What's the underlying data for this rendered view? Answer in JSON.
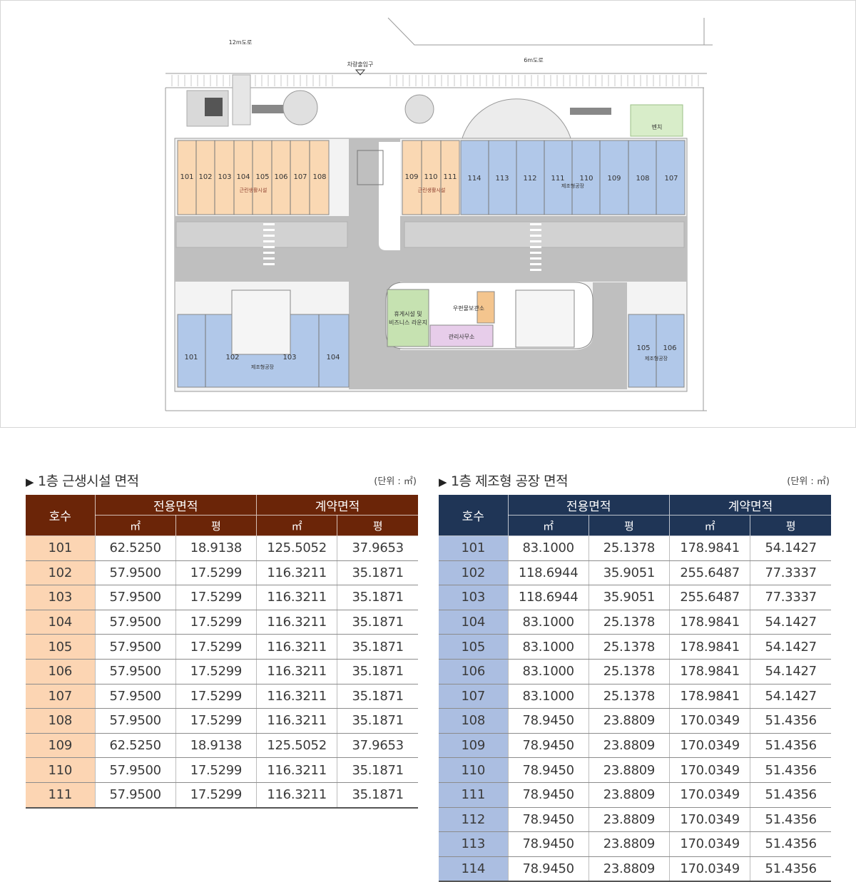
{
  "floor_plan": {
    "road_12m": "12m도로",
    "road_6m": "6m도로",
    "vehicle_entrance": "차량출입구",
    "bench": "벤치",
    "lounge_line1": "휴게시설 및",
    "lounge_line2": "비즈니스 라운지",
    "mail_storage": "우편물보관소",
    "management_office": "관리사무소",
    "zone_retail": "근린생활시설",
    "zone_factory": "제조형공장",
    "top_left_units": [
      "101",
      "102",
      "103",
      "104",
      "105",
      "106",
      "107",
      "108"
    ],
    "top_mid_units": [
      "109",
      "110",
      "111"
    ],
    "top_right_units": [
      "114",
      "113",
      "112",
      "111",
      "110",
      "109",
      "108",
      "107"
    ],
    "bottom_left_units": [
      "101",
      "102",
      "103",
      "104"
    ],
    "bottom_right_units": [
      "105",
      "106"
    ],
    "colors": {
      "retail": "#fad8b3",
      "factory": "#b1c8e9",
      "lounge": "#c6e2b1",
      "office": "#e7cdea",
      "road": "#bfbfbf"
    }
  },
  "retail_table": {
    "title": "1층 근생시설 면적",
    "unit": "(단위 : ㎡)",
    "header_unit_no": "호수",
    "header_exclusive": "전용면적",
    "header_contract": "계약면적",
    "sub_m2": "㎡",
    "sub_pyeong": "평",
    "rows": [
      [
        "101",
        "62.5250",
        "18.9138",
        "125.5052",
        "37.9653"
      ],
      [
        "102",
        "57.9500",
        "17.5299",
        "116.3211",
        "35.1871"
      ],
      [
        "103",
        "57.9500",
        "17.5299",
        "116.3211",
        "35.1871"
      ],
      [
        "104",
        "57.9500",
        "17.5299",
        "116.3211",
        "35.1871"
      ],
      [
        "105",
        "57.9500",
        "17.5299",
        "116.3211",
        "35.1871"
      ],
      [
        "106",
        "57.9500",
        "17.5299",
        "116.3211",
        "35.1871"
      ],
      [
        "107",
        "57.9500",
        "17.5299",
        "116.3211",
        "35.1871"
      ],
      [
        "108",
        "57.9500",
        "17.5299",
        "116.3211",
        "35.1871"
      ],
      [
        "109",
        "62.5250",
        "18.9138",
        "125.5052",
        "37.9653"
      ],
      [
        "110",
        "57.9500",
        "17.5299",
        "116.3211",
        "35.1871"
      ],
      [
        "111",
        "57.9500",
        "17.5299",
        "116.3211",
        "35.1871"
      ]
    ]
  },
  "factory_table": {
    "title": "1층 제조형 공장 면적",
    "unit": "(단위 : ㎡)",
    "header_unit_no": "호수",
    "header_exclusive": "전용면적",
    "header_contract": "계약면적",
    "sub_m2": "㎡",
    "sub_pyeong": "평",
    "rows": [
      [
        "101",
        "83.1000",
        "25.1378",
        "178.9841",
        "54.1427"
      ],
      [
        "102",
        "118.6944",
        "35.9051",
        "255.6487",
        "77.3337"
      ],
      [
        "103",
        "118.6944",
        "35.9051",
        "255.6487",
        "77.3337"
      ],
      [
        "104",
        "83.1000",
        "25.1378",
        "178.9841",
        "54.1427"
      ],
      [
        "105",
        "83.1000",
        "25.1378",
        "178.9841",
        "54.1427"
      ],
      [
        "106",
        "83.1000",
        "25.1378",
        "178.9841",
        "54.1427"
      ],
      [
        "107",
        "83.1000",
        "25.1378",
        "178.9841",
        "54.1427"
      ],
      [
        "108",
        "78.9450",
        "23.8809",
        "170.0349",
        "51.4356"
      ],
      [
        "109",
        "78.9450",
        "23.8809",
        "170.0349",
        "51.4356"
      ],
      [
        "110",
        "78.9450",
        "23.8809",
        "170.0349",
        "51.4356"
      ],
      [
        "111",
        "78.9450",
        "23.8809",
        "170.0349",
        "51.4356"
      ],
      [
        "112",
        "78.9450",
        "23.8809",
        "170.0349",
        "51.4356"
      ],
      [
        "113",
        "78.9450",
        "23.8809",
        "170.0349",
        "51.4356"
      ],
      [
        "114",
        "78.9450",
        "23.8809",
        "170.0349",
        "51.4356"
      ]
    ]
  }
}
